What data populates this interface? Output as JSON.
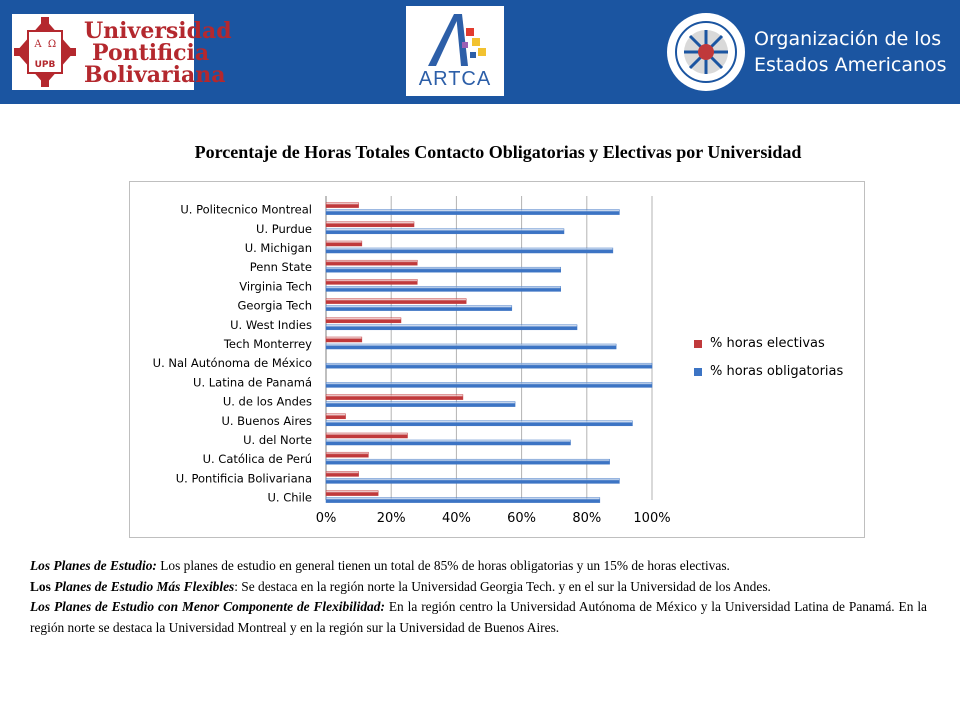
{
  "header": {
    "upb_logo_text": [
      "Universidad",
      "Pontificia",
      "Bolivariana"
    ],
    "upb_crest_text": [
      "A",
      "Ω",
      "UPB"
    ],
    "artca_logo_text": "ARTCA",
    "oea_logo_text": [
      "Organización de los",
      "Estados Americanos"
    ],
    "colors": {
      "banner": "#1b55a1",
      "upb_red": "#b4282e"
    }
  },
  "chart_data": {
    "type": "bar",
    "orientation": "horizontal",
    "title": "Porcentaje de Horas Totales Contacto Obligatorias y Electivas por Universidad",
    "categories": [
      "U. Politecnico Montreal",
      "U. Purdue",
      "U. Michigan",
      "Penn State",
      "Virginia Tech",
      "Georgia Tech",
      "U. West Indies",
      "Tech  Monterrey",
      "U. Nal Autónoma de México",
      "U. Latina de Panamá",
      "U. de los Andes",
      "U. Buenos Aires",
      "U. del Norte",
      "U. Católica de Perú",
      "U. Pontificia Bolivariana",
      "U. Chile"
    ],
    "series": [
      {
        "name": "% horas electivas",
        "color": "#c0393b",
        "values": [
          10,
          27,
          11,
          28,
          28,
          43,
          23,
          11,
          0,
          0,
          42,
          6,
          25,
          13,
          10,
          16
        ]
      },
      {
        "name": "% horas obligatorias",
        "color": "#3c74c4",
        "values": [
          90,
          73,
          88,
          72,
          72,
          57,
          77,
          89,
          100,
          100,
          58,
          94,
          75,
          87,
          90,
          84
        ]
      }
    ],
    "xlim": [
      0,
      100
    ],
    "xticks": [
      "0%",
      "20%",
      "40%",
      "60%",
      "80%",
      "100%"
    ],
    "grid": true,
    "legend": "right"
  },
  "text": {
    "p1_lead": "Los Planes de Estudio:",
    "p1_body": " Los planes de estudio en general tienen un total de 85% de horas obligatorias y un 15% de horas electivas.",
    "p2_lead_regular": "Los ",
    "p2_lead_italic": "Planes de Estudio Más Flexibles",
    "p2_body": ": Se destaca en la región norte la Universidad Georgia Tech. y en el sur la Universidad de los Andes.",
    "p3_lead": "Los Planes de Estudio con Menor Componente de Flexibilidad:",
    "p3_body": " En la región centro la Universidad Autónoma de México y la Universidad Latina de Panamá. En la región norte se destaca la Universidad Montreal y en la región sur la Universidad de Buenos Aires."
  }
}
